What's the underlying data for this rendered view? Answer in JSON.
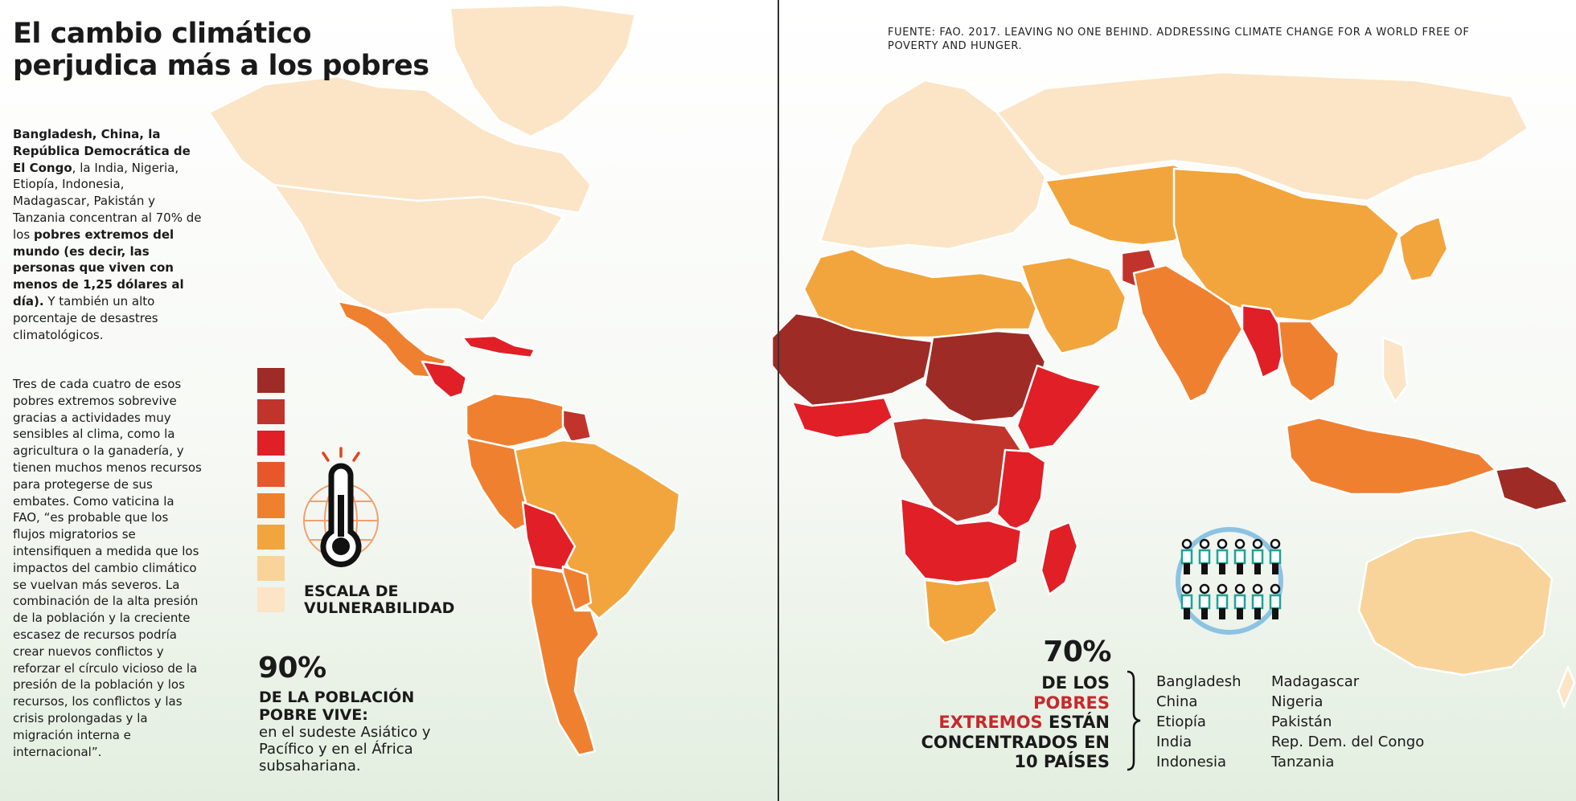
{
  "title": "El cambio climático perjudica más a los pobres",
  "source": "FUENTE: FAO. 2017. LEAVING NO ONE BEHIND. ADDRESSING CLIMATE CHANGE FOR A WORLD FREE OF POVERTY AND HUNGER.",
  "intro": {
    "bold_lead": "Bangladesh, China, la República Democrática de El Congo",
    "text_1": ", la India, Nigeria, Etiopía, Indonesia, Madagascar, Pakistán y Tanzania concentran al 70% de los ",
    "bold_mid": "pobres extremos del mundo (es decir, las personas que viven con menos de 1,25 dólares al día).",
    "text_2": " Y también un alto porcentaje de desastres climatológicos."
  },
  "paragraph_2": "Tres de cada cuatro de esos pobres extremos sobrevive gracias a  actividades muy sensibles al clima, como la agricultura o la ganadería, y tienen muchos menos recursos para protegerse de sus embates. Como vaticina la FAO, “es probable que los flujos migratorios se intensifiquen a medida que los impactos del cambio climático se vuelvan más severos. La combinación de la alta presión de la población y la creciente escasez de recursos podría crear nuevos conflictos y reforzar el círculo vicioso de la presión de la población y los recursos, los conflictos y las crisis prolongadas y la migración interna e internacional”.",
  "legend": {
    "title": "ESCALA DE VULNERABILIDAD",
    "colors": [
      "#9e2b25",
      "#c0342c",
      "#e01f27",
      "#e8572c",
      "#ef8030",
      "#f2a53c",
      "#f8d49a",
      "#fbe5c6"
    ]
  },
  "stat_90": {
    "value": "90%",
    "headline": "DE LA POBLACIÓN POBRE VIVE:",
    "detail": "en el sudeste Asiático y Pacífico y en el África subsahariana."
  },
  "stat_70": {
    "value": "70%",
    "line_1": "DE LOS",
    "line_2_red": "POBRES",
    "line_3_red": "EXTREMOS",
    "line_3_black": " ESTÁN",
    "line_4": "CONCENTRADOS EN",
    "line_5": "10 PAÍSES"
  },
  "countries_col_1": [
    "Bangladesh",
    "China",
    "Etiopía",
    "India",
    "Indonesia"
  ],
  "countries_col_2": [
    "Madagascar",
    "Nigeria",
    "Pakistán",
    "Rep. Dem. del Congo",
    "Tanzania"
  ],
  "icons": [
    "thermometer-globe-icon",
    "people-globe-icon"
  ],
  "map_regions": [
    {
      "name": "greenland",
      "level": 8
    },
    {
      "name": "canada",
      "level": 8
    },
    {
      "name": "usa",
      "level": 8
    },
    {
      "name": "mexico",
      "level": 5
    },
    {
      "name": "central-america",
      "level": 3
    },
    {
      "name": "caribbean",
      "level": 3
    },
    {
      "name": "colombia-venezuela",
      "level": 5
    },
    {
      "name": "guyanas",
      "level": 2
    },
    {
      "name": "brazil",
      "level": 6
    },
    {
      "name": "peru-ecuador",
      "level": 5
    },
    {
      "name": "bolivia",
      "level": 3
    },
    {
      "name": "paraguay",
      "level": 5
    },
    {
      "name": "argentina-chile",
      "level": 5
    },
    {
      "name": "europe",
      "level": 8
    },
    {
      "name": "russia",
      "level": 8
    },
    {
      "name": "north-africa",
      "level": 6
    },
    {
      "name": "sahel-west-africa",
      "level": 1
    },
    {
      "name": "west-africa-coast",
      "level": 3
    },
    {
      "name": "chad-sudan",
      "level": 1
    },
    {
      "name": "horn-of-africa",
      "level": 3
    },
    {
      "name": "central-africa",
      "level": 2
    },
    {
      "name": "east-africa",
      "level": 3
    },
    {
      "name": "southern-africa",
      "level": 3
    },
    {
      "name": "south-africa",
      "level": 6
    },
    {
      "name": "madagascar",
      "level": 3
    },
    {
      "name": "middle-east",
      "level": 6
    },
    {
      "name": "afghanistan",
      "level": 2
    },
    {
      "name": "central-asia",
      "level": 6
    },
    {
      "name": "china-mongolia",
      "level": 6
    },
    {
      "name": "india-pakistan",
      "level": 5
    },
    {
      "name": "myanmar-bangladesh",
      "level": 3
    },
    {
      "name": "southeast-asia",
      "level": 5
    },
    {
      "name": "indonesia",
      "level": 5
    },
    {
      "name": "papua-new-guinea",
      "level": 1
    },
    {
      "name": "japan-korea",
      "level": 6
    },
    {
      "name": "australia",
      "level": 7
    }
  ]
}
